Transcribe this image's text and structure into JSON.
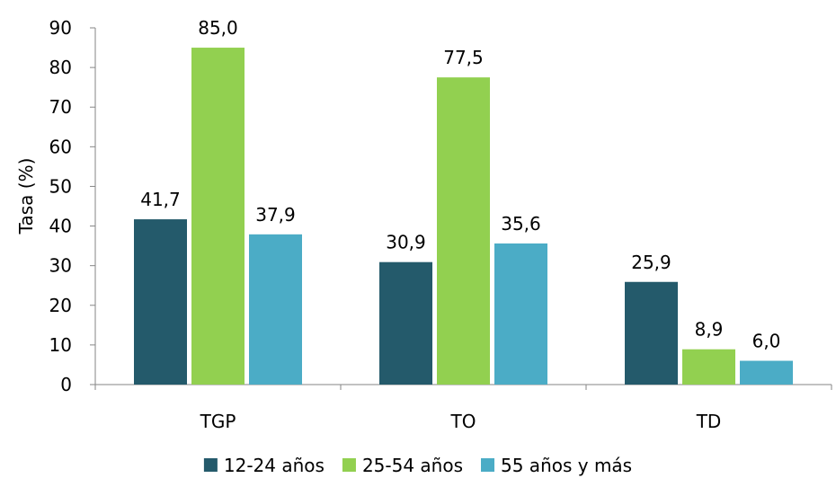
{
  "chart_data": {
    "type": "bar",
    "title": "",
    "xlabel": "",
    "ylabel": "Tasa (%)",
    "ylim": [
      0,
      90
    ],
    "yticks": [
      0,
      10,
      20,
      30,
      40,
      50,
      60,
      70,
      80,
      90
    ],
    "grid": false,
    "legend_position": "bottom",
    "categories": [
      "TGP",
      "TO",
      "TD"
    ],
    "series": [
      {
        "name": "12-24 años",
        "color": "#245a6b",
        "values": [
          41.7,
          30.9,
          25.9
        ],
        "labels": [
          "41,7",
          "30,9",
          "25,9"
        ]
      },
      {
        "name": "25-54 años",
        "color": "#92d050",
        "values": [
          85.0,
          77.5,
          8.9
        ],
        "labels": [
          "85,0",
          "77,5",
          "8,9"
        ]
      },
      {
        "name": "55 años y más",
        "color": "#4bacc6",
        "values": [
          37.9,
          35.6,
          6.0
        ],
        "labels": [
          "37,9",
          "35,6",
          "6,0"
        ]
      }
    ]
  }
}
